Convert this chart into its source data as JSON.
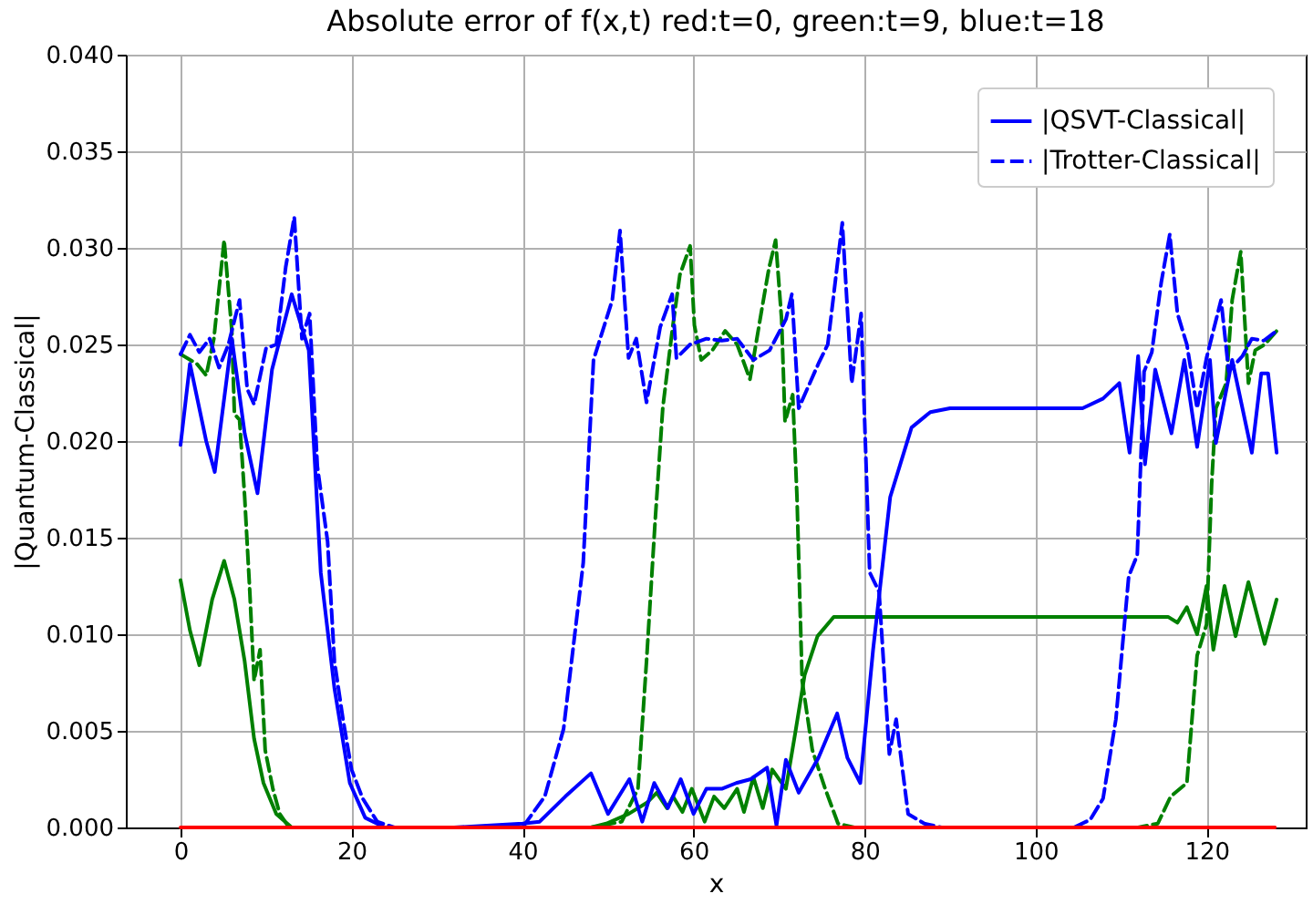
{
  "chart_data": {
    "type": "line",
    "title": "Absolute error of f(x,t) red:t=0, green:t=9, blue:t=18",
    "xlabel": "x",
    "ylabel": "|Quantum-Classical|",
    "xlim": [
      -6.4,
      131.6
    ],
    "xticks": [
      0,
      20,
      40,
      60,
      80,
      100,
      120
    ],
    "ylim": [
      0,
      0.04
    ],
    "yticks": [
      {
        "value": 0,
        "label": "0.000"
      },
      {
        "value": 0.005,
        "label": "0.005"
      },
      {
        "value": 0.01,
        "label": "0.010"
      },
      {
        "value": 0.015,
        "label": "0.015"
      },
      {
        "value": 0.02,
        "label": "0.020"
      },
      {
        "value": 0.025,
        "label": "0.025"
      },
      {
        "value": 0.03,
        "label": "0.030"
      },
      {
        "value": 0.035,
        "label": "0.035"
      },
      {
        "value": 0.04,
        "label": "0.040"
      }
    ],
    "grid": true,
    "legend": "top right",
    "marker": "none",
    "series": [
      {
        "color": "#008000",
        "line_style": "solid",
        "x": [
          0,
          1.1,
          2.2,
          3.7,
          5.1,
          6.3,
          7.5,
          8.6,
          9.7,
          11.2,
          13,
          30,
          48,
          49.8,
          52.4,
          54.6,
          55.7,
          56.9,
          57.6,
          58.7,
          59.8,
          61.3,
          62.4,
          63.6,
          65.1,
          65.9,
          67,
          68.1,
          69.2,
          70.8,
          71.9,
          73,
          74.5,
          76.4,
          80,
          100,
          115.5,
          116.6,
          117.7,
          118.9,
          120,
          120.8,
          122.1,
          123.4,
          124.9,
          126.8,
          128.2
        ],
        "values": [
          0.0128,
          0.0102,
          0.0084,
          0.0118,
          0.0138,
          0.0118,
          0.0086,
          0.0046,
          0.0023,
          0.0007,
          0,
          0,
          0,
          0.0002,
          0.0007,
          0.0013,
          0.0018,
          0.001,
          0.0016,
          0.0008,
          0.002,
          0.0003,
          0.0016,
          0.001,
          0.002,
          0.0008,
          0.0026,
          0.001,
          0.003,
          0.002,
          0.0049,
          0.0079,
          0.0099,
          0.0109,
          0.0109,
          0.0109,
          0.0109,
          0.0106,
          0.0114,
          0.01,
          0.0125,
          0.0092,
          0.0125,
          0.0099,
          0.0127,
          0.0095,
          0.0118
        ]
      },
      {
        "color": "#008000",
        "line_style": "dashed",
        "x": [
          0,
          1.9,
          3,
          3.9,
          5.1,
          6,
          6.3,
          6.9,
          7.5,
          8.1,
          8.6,
          9.3,
          9.9,
          10.8,
          11.6,
          12.7,
          30,
          48,
          51.6,
          53.5,
          54.5,
          55.5,
          56.4,
          57.5,
          58.4,
          59.6,
          60.1,
          60.9,
          62.2,
          63.7,
          65.1,
          66.6,
          67.9,
          68.8,
          69.6,
          70.3,
          70.7,
          71.6,
          72.1,
          72.7,
          73.9,
          75.4,
          76.9,
          78.8,
          95,
          112,
          114.3,
          115.8,
          117.7,
          118.9,
          120,
          120.6,
          121.1,
          122.3,
          123,
          124,
          124.9,
          125.7,
          126.8,
          128.2
        ],
        "values": [
          0.0245,
          0.024,
          0.0234,
          0.0253,
          0.0304,
          0.0257,
          0.0214,
          0.0211,
          0.0171,
          0.0122,
          0.0076,
          0.0092,
          0.004,
          0.002,
          0.0007,
          0,
          0,
          0,
          0.0003,
          0.002,
          0.0086,
          0.0158,
          0.0217,
          0.0257,
          0.0286,
          0.0301,
          0.026,
          0.0242,
          0.0247,
          0.0257,
          0.025,
          0.0232,
          0.0266,
          0.0289,
          0.0304,
          0.0263,
          0.021,
          0.0224,
          0.0171,
          0.0076,
          0.004,
          0.002,
          0.0002,
          0,
          0,
          0,
          0.0002,
          0.0016,
          0.0023,
          0.0089,
          0.0105,
          0.0178,
          0.0217,
          0.023,
          0.0273,
          0.0298,
          0.023,
          0.0247,
          0.025,
          0.0257
        ]
      },
      {
        "name": "|QSVT-Classical|",
        "color": "#0000ff",
        "line_style": "solid",
        "x": [
          0,
          1.1,
          3,
          4,
          6,
          7.5,
          9,
          10.7,
          13,
          15,
          16.4,
          18,
          19.8,
          21.6,
          23.9,
          32,
          40,
          42,
          45,
          48,
          50,
          52.5,
          54,
          55.4,
          57,
          58.5,
          60,
          61.5,
          63.3,
          65,
          66.7,
          68.6,
          69.7,
          70.8,
          72.3,
          74.6,
          76.8,
          78,
          79.5,
          81,
          83,
          85.5,
          87.7,
          90,
          100,
          105.5,
          107.9,
          109.8,
          111,
          112,
          112.8,
          114,
          115.9,
          117.4,
          118.9,
          120.4,
          121.1,
          123,
          124.2,
          125.3,
          126.4,
          127.2,
          128.2
        ],
        "values": [
          0.0198,
          0.024,
          0.02,
          0.0184,
          0.0253,
          0.0204,
          0.0173,
          0.0237,
          0.0276,
          0.0247,
          0.0132,
          0.0072,
          0.0023,
          0.0005,
          0,
          0,
          0.0002,
          0.0003,
          0.0016,
          0.0028,
          0.0007,
          0.0025,
          0.0003,
          0.0023,
          0.001,
          0.0025,
          0.0007,
          0.002,
          0.002,
          0.0023,
          0.0025,
          0.0031,
          0.0001,
          0.0035,
          0.0018,
          0.0036,
          0.0059,
          0.0036,
          0.0023,
          0.0092,
          0.0171,
          0.0207,
          0.0215,
          0.0217,
          0.0217,
          0.0217,
          0.0222,
          0.023,
          0.0194,
          0.0244,
          0.0188,
          0.0237,
          0.0204,
          0.0242,
          0.0197,
          0.0242,
          0.0199,
          0.0242,
          0.0217,
          0.0194,
          0.0235,
          0.0235,
          0.0194
        ]
      },
      {
        "name": "|Trotter-Classical|",
        "color": "#0000ff",
        "line_style": "dashed",
        "x": [
          0,
          1.1,
          2.2,
          3.4,
          4.5,
          5.6,
          6.9,
          7.8,
          8.6,
          10,
          11.2,
          12.3,
          13.3,
          14.2,
          15.1,
          16,
          17.2,
          18,
          19,
          20,
          21.3,
          23,
          25,
          32,
          40,
          42.6,
          44.8,
          47.1,
          48.3,
          50.5,
          51.4,
          52.4,
          53.3,
          54.5,
          56.1,
          57.5,
          58,
          59.6,
          61.5,
          63.3,
          65.1,
          67,
          68.9,
          70.8,
          71.5,
          72.3,
          74.6,
          75.7,
          77.4,
          78.5,
          79.6,
          80.6,
          81.7,
          82.9,
          83.7,
          85.1,
          87,
          89,
          95,
          104.5,
          106.4,
          107.9,
          109.4,
          110.9,
          111.9,
          112.7,
          113.6,
          114.7,
          115.7,
          116.6,
          117.7,
          118.9,
          120,
          121.7,
          122.6,
          124.2,
          125.3,
          126.7,
          128.2
        ],
        "values": [
          0.0245,
          0.0255,
          0.0246,
          0.0253,
          0.0238,
          0.025,
          0.0273,
          0.0227,
          0.0219,
          0.0248,
          0.025,
          0.029,
          0.0316,
          0.0253,
          0.0266,
          0.0187,
          0.0148,
          0.0086,
          0.0056,
          0.003,
          0.0015,
          0.0003,
          0,
          0,
          0,
          0.0016,
          0.0051,
          0.0137,
          0.0242,
          0.0273,
          0.0309,
          0.0243,
          0.0253,
          0.022,
          0.0259,
          0.0276,
          0.0243,
          0.025,
          0.0253,
          0.0252,
          0.0253,
          0.0242,
          0.0247,
          0.0263,
          0.0276,
          0.0217,
          0.024,
          0.025,
          0.0313,
          0.023,
          0.0266,
          0.0132,
          0.0122,
          0.0038,
          0.0056,
          0.0007,
          0.0002,
          0,
          0,
          0,
          0.0004,
          0.0015,
          0.0056,
          0.013,
          0.0141,
          0.0236,
          0.0246,
          0.0282,
          0.0307,
          0.0266,
          0.025,
          0.0217,
          0.0243,
          0.0273,
          0.0236,
          0.0244,
          0.0253,
          0.0252,
          0.0257
        ]
      },
      {
        "color": "#ff0000",
        "line_style": "solid",
        "x": [
          0,
          32,
          64,
          96,
          128
        ],
        "values": [
          0,
          0,
          0,
          0,
          0
        ]
      }
    ]
  }
}
